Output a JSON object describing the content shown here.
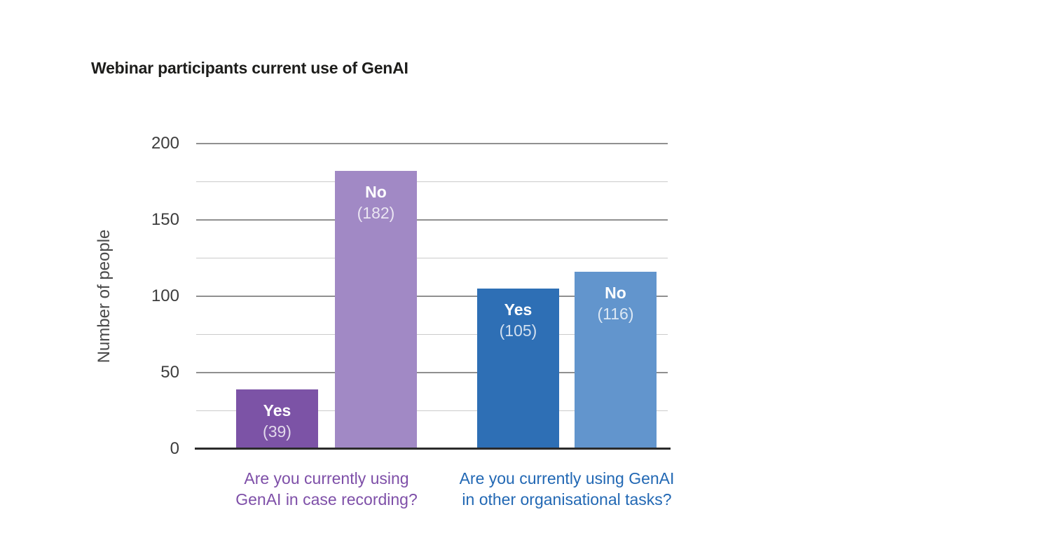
{
  "chart_data": {
    "type": "bar",
    "title": "Webinar participants current use of GenAI",
    "ylabel": "Number of people",
    "xlabel": "",
    "ylim": [
      0,
      200
    ],
    "yticks_labeled": [
      0,
      50,
      100,
      150,
      200
    ],
    "yticks_minor": [
      25,
      75,
      125,
      175
    ],
    "grid": "horizontal",
    "legend_position": "none",
    "groups": [
      {
        "category": "Are you currently using GenAI in case recording?",
        "category_lines": [
          "Are you currently using",
          "GenAI in case recording?"
        ],
        "category_color": "#7e4fa8",
        "bars": [
          {
            "label": "Yes",
            "value": 39,
            "value_display": "(39)",
            "color": "#7c53a6"
          },
          {
            "label": "No",
            "value": 182,
            "value_display": "(182)",
            "color": "#a189c5"
          }
        ]
      },
      {
        "category": "Are you currently using GenAI in other organisational tasks?",
        "category_lines": [
          "Are you currently using GenAI",
          "in other organisational tasks?"
        ],
        "category_color": "#2268b4",
        "bars": [
          {
            "label": "Yes",
            "value": 105,
            "value_display": "(105)",
            "color": "#2e6fb5"
          },
          {
            "label": "No",
            "value": 116,
            "value_display": "(116)",
            "color": "#6295cd"
          }
        ]
      }
    ],
    "colors": {
      "grid_major": "#909090",
      "grid_minor": "#cbcbcb",
      "axis_line": "#2b2b2b",
      "tick_text": "#3d3d3d",
      "title_text": "#1d1d1b",
      "bar_label_text": "#ffffff"
    }
  }
}
